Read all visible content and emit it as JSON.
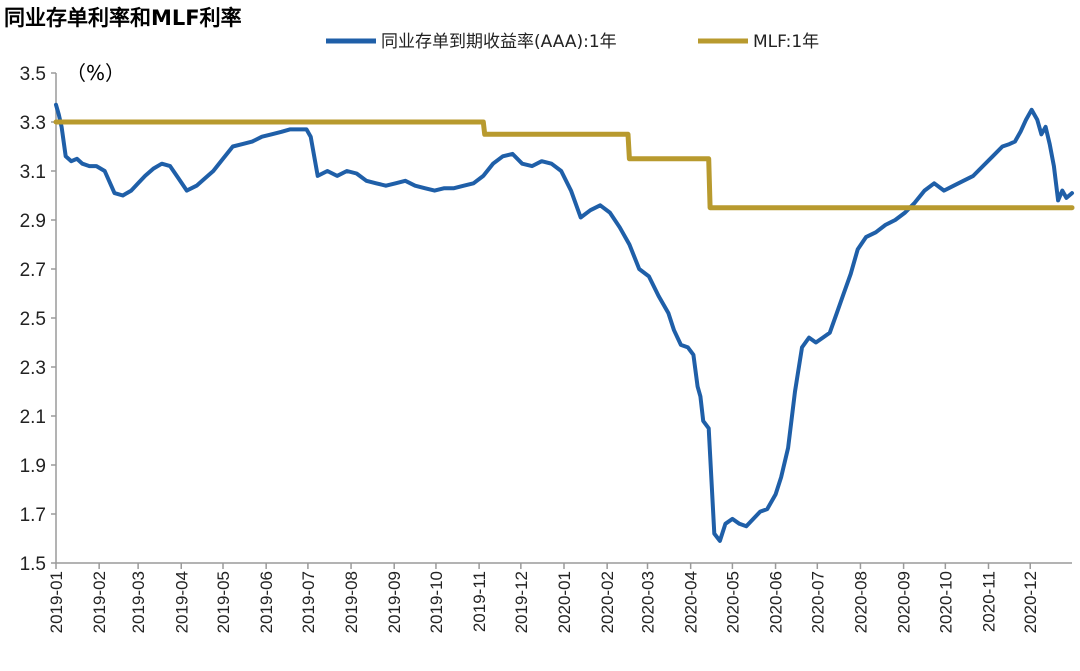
{
  "chart_data": {
    "type": "line",
    "title": "同业存单利率和MLF利率",
    "unit_label": "（%）",
    "xlabel": "",
    "ylabel": "",
    "ylim": [
      1.5,
      3.5
    ],
    "yticks": [
      "3.5",
      "3.3",
      "3.1",
      "2.9",
      "2.7",
      "2.5",
      "2.3",
      "2.1",
      "1.9",
      "1.7",
      "1.5"
    ],
    "xlim": [
      "2019-01-01",
      "2020-12-31"
    ],
    "xticks": [
      "2019-01",
      "2019-02",
      "2019-03",
      "2019-04",
      "2019-05",
      "2019-06",
      "2019-07",
      "2019-08",
      "2019-09",
      "2019-10",
      "2019-11",
      "2019-12",
      "2020-01",
      "2020-02",
      "2020-03",
      "2020-04",
      "2020-05",
      "2020-06",
      "2020-07",
      "2020-08",
      "2020-09",
      "2020-10",
      "2020-11",
      "2020-12"
    ],
    "grid": false,
    "legend_position": "top",
    "series": [
      {
        "name": "同业存单到期收益率(AAA):1年",
        "color": "#1f5fa8",
        "x": [
          "2019-01-01",
          "2019-01-03",
          "2019-01-05",
          "2019-01-08",
          "2019-01-12",
          "2019-01-16",
          "2019-01-20",
          "2019-01-25",
          "2019-01-30",
          "2019-02-05",
          "2019-02-12",
          "2019-02-18",
          "2019-02-24",
          "2019-03-01",
          "2019-03-06",
          "2019-03-12",
          "2019-03-18",
          "2019-03-24",
          "2019-03-30",
          "2019-04-05",
          "2019-04-12",
          "2019-04-18",
          "2019-04-24",
          "2019-05-01",
          "2019-05-08",
          "2019-05-15",
          "2019-05-22",
          "2019-05-29",
          "2019-06-05",
          "2019-06-12",
          "2019-06-18",
          "2019-06-24",
          "2019-06-30",
          "2019-07-03",
          "2019-07-08",
          "2019-07-15",
          "2019-07-22",
          "2019-07-29",
          "2019-08-05",
          "2019-08-12",
          "2019-08-19",
          "2019-08-26",
          "2019-09-02",
          "2019-09-09",
          "2019-09-16",
          "2019-09-23",
          "2019-09-30",
          "2019-10-07",
          "2019-10-14",
          "2019-10-21",
          "2019-10-28",
          "2019-11-04",
          "2019-11-11",
          "2019-11-18",
          "2019-11-25",
          "2019-12-02",
          "2019-12-09",
          "2019-12-16",
          "2019-12-23",
          "2019-12-30",
          "2020-01-06",
          "2020-01-13",
          "2020-01-20",
          "2020-01-27",
          "2020-02-03",
          "2020-02-10",
          "2020-02-17",
          "2020-02-24",
          "2020-03-02",
          "2020-03-09",
          "2020-03-16",
          "2020-03-20",
          "2020-03-25",
          "2020-03-30",
          "2020-04-03",
          "2020-04-06",
          "2020-04-08",
          "2020-04-10",
          "2020-04-14",
          "2020-04-18",
          "2020-04-22",
          "2020-04-26",
          "2020-05-01",
          "2020-05-06",
          "2020-05-11",
          "2020-05-16",
          "2020-05-21",
          "2020-05-26",
          "2020-06-01",
          "2020-06-05",
          "2020-06-10",
          "2020-06-15",
          "2020-06-20",
          "2020-06-25",
          "2020-06-30",
          "2020-07-05",
          "2020-07-10",
          "2020-07-15",
          "2020-07-20",
          "2020-07-25",
          "2020-07-30",
          "2020-08-05",
          "2020-08-12",
          "2020-08-19",
          "2020-08-26",
          "2020-09-02",
          "2020-09-09",
          "2020-09-16",
          "2020-09-23",
          "2020-09-30",
          "2020-10-07",
          "2020-10-14",
          "2020-10-21",
          "2020-10-28",
          "2020-11-04",
          "2020-11-11",
          "2020-11-16",
          "2020-11-20",
          "2020-11-24",
          "2020-11-28",
          "2020-12-02",
          "2020-12-06",
          "2020-12-09",
          "2020-12-12",
          "2020-12-15",
          "2020-12-18",
          "2020-12-21",
          "2020-12-24",
          "2020-12-27",
          "2020-12-31"
        ],
        "values": [
          3.37,
          3.33,
          3.28,
          3.16,
          3.14,
          3.15,
          3.13,
          3.12,
          3.12,
          3.1,
          3.01,
          3.0,
          3.02,
          3.05,
          3.08,
          3.11,
          3.13,
          3.12,
          3.07,
          3.02,
          3.04,
          3.07,
          3.1,
          3.15,
          3.2,
          3.21,
          3.22,
          3.24,
          3.25,
          3.26,
          3.27,
          3.27,
          3.27,
          3.24,
          3.08,
          3.1,
          3.08,
          3.1,
          3.09,
          3.06,
          3.05,
          3.04,
          3.05,
          3.06,
          3.04,
          3.03,
          3.02,
          3.03,
          3.03,
          3.04,
          3.05,
          3.08,
          3.13,
          3.16,
          3.17,
          3.13,
          3.12,
          3.14,
          3.13,
          3.1,
          3.02,
          2.91,
          2.94,
          2.96,
          2.93,
          2.87,
          2.8,
          2.7,
          2.67,
          2.59,
          2.52,
          2.45,
          2.39,
          2.38,
          2.35,
          2.22,
          2.18,
          2.08,
          2.05,
          1.62,
          1.59,
          1.66,
          1.68,
          1.66,
          1.65,
          1.68,
          1.71,
          1.72,
          1.78,
          1.85,
          1.97,
          2.2,
          2.38,
          2.42,
          2.4,
          2.42,
          2.44,
          2.52,
          2.6,
          2.68,
          2.78,
          2.83,
          2.85,
          2.88,
          2.9,
          2.93,
          2.97,
          3.02,
          3.05,
          3.02,
          3.04,
          3.06,
          3.08,
          3.12,
          3.16,
          3.2,
          3.21,
          3.22,
          3.26,
          3.31,
          3.35,
          3.31,
          3.25,
          3.28,
          3.21,
          3.12,
          2.98,
          3.02,
          2.99,
          3.01
        ]
      },
      {
        "name": "MLF:1年",
        "color": "#b89a2e",
        "x": [
          "2019-01-01",
          "2019-11-04",
          "2019-11-05",
          "2020-02-16",
          "2020-02-17",
          "2020-04-14",
          "2020-04-15",
          "2020-12-31"
        ],
        "values": [
          3.3,
          3.3,
          3.25,
          3.25,
          3.15,
          3.15,
          2.95,
          2.95
        ]
      }
    ]
  }
}
